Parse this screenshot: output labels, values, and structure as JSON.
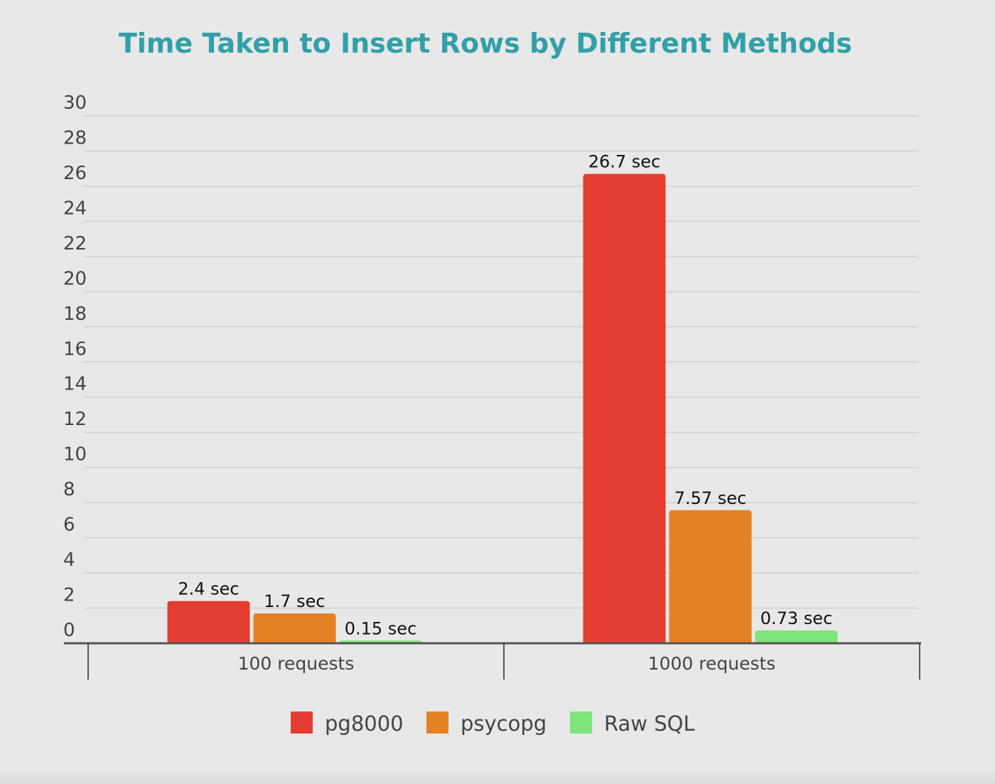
{
  "chart_data": {
    "type": "bar",
    "title": "Time Taken to Insert Rows by Different Methods",
    "xlabel": "",
    "ylabel": "",
    "categories": [
      "100 requests",
      "1000 requests"
    ],
    "series": [
      {
        "name": "pg8000",
        "color": "#e33d32",
        "values": [
          2.4,
          26.7
        ],
        "labels": [
          "2.4 sec",
          "26.7 sec"
        ]
      },
      {
        "name": "psycopg",
        "color": "#e58226",
        "values": [
          1.7,
          7.57
        ],
        "labels": [
          "1.7 sec",
          "7.57 sec"
        ]
      },
      {
        "name": "Raw SQL",
        "color": "#7ee57a",
        "values": [
          0.15,
          0.73
        ],
        "labels": [
          "0.15 sec",
          "0.73 sec"
        ]
      }
    ],
    "ylim": [
      0,
      30
    ],
    "yticks": [
      0,
      2,
      4,
      6,
      8,
      10,
      12,
      14,
      16,
      18,
      20,
      22,
      24,
      26,
      28,
      30
    ],
    "grid": true,
    "legend_position": "bottom-center",
    "colors": {
      "title": "#31a0a8",
      "axis": "#555555",
      "grid": "#cfd1cf",
      "text": "#444444"
    }
  }
}
